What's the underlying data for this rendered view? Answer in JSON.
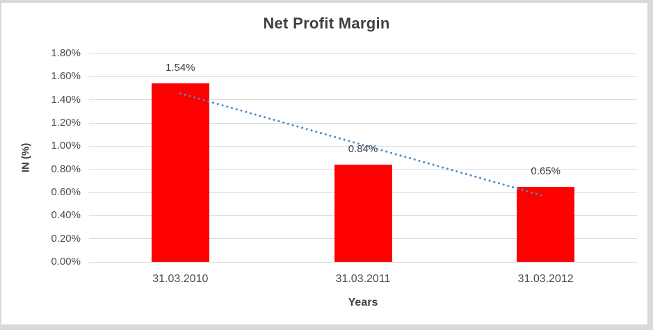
{
  "chart_data": {
    "type": "bar",
    "title": "Net Profit Margin",
    "xlabel": "Years",
    "ylabel": "IN (%)",
    "categories": [
      "31.03.2010",
      "31.03.2011",
      "31.03.2012"
    ],
    "series": [
      {
        "name": "Net Profit Margin",
        "values": [
          1.54,
          0.84,
          0.65
        ],
        "data_labels": [
          "1.54%",
          "0.84%",
          "0.65%"
        ],
        "color": "#ff0000"
      }
    ],
    "ylim": [
      0,
      1.8
    ],
    "ytick_step": 0.2,
    "ytick_labels": [
      "0.00%",
      "0.20%",
      "0.40%",
      "0.60%",
      "0.80%",
      "1.00%",
      "1.20%",
      "1.40%",
      "1.60%",
      "1.80%"
    ],
    "grid": "horizontal",
    "gridline_color": "#d9d9d9",
    "legend": "none",
    "trendline": {
      "type": "linear",
      "style": "dotted",
      "color": "#4e88c8",
      "start_value": 1.455,
      "end_value": 0.565
    },
    "frame_color": "#d9d9d9",
    "title_color": "#3f3f3f",
    "axis_text_color": "#4d4d4d",
    "label_text_color": "#404040"
  }
}
